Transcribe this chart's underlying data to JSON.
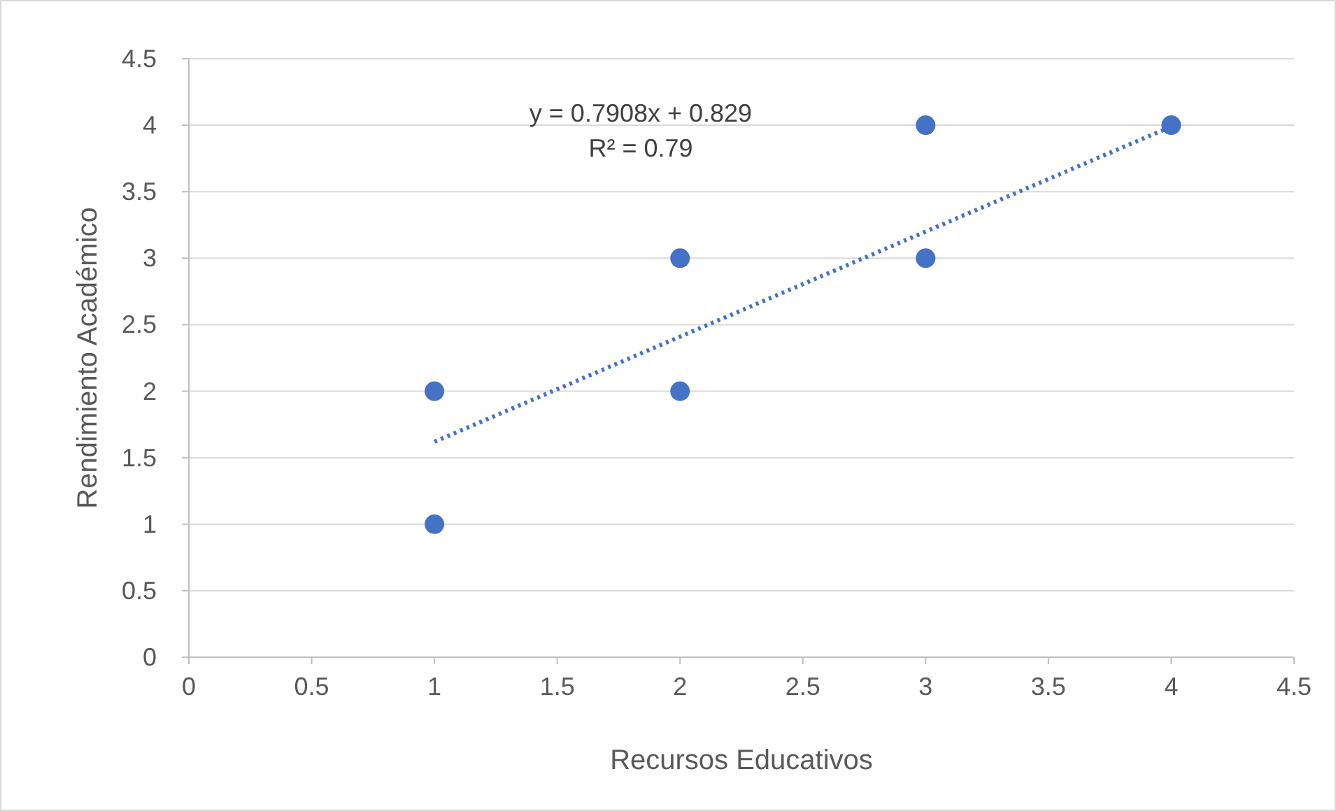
{
  "chart_data": {
    "type": "scatter",
    "xlabel": "Recursos Educativos",
    "ylabel": "Rendimiento Académico",
    "xlim": [
      0,
      4.5
    ],
    "ylim": [
      0,
      4.5
    ],
    "xticks": [
      0,
      0.5,
      1,
      1.5,
      2,
      2.5,
      3,
      3.5,
      4,
      4.5
    ],
    "yticks": [
      0,
      0.5,
      1,
      1.5,
      2,
      2.5,
      3,
      3.5,
      4,
      4.5
    ],
    "grid": "y",
    "marker": "circle",
    "annotations": [
      "y = 0.7908x + 0.829",
      "R² = 0.79"
    ],
    "series": [
      {
        "color": "#4472c4",
        "x": [
          1,
          1,
          2,
          2,
          3,
          3,
          4
        ],
        "values": [
          1,
          2,
          2,
          3,
          3,
          4,
          4
        ]
      },
      {
        "type": "line",
        "color": "#4472c4",
        "line_style": "dotted",
        "marker": "none",
        "x": [
          1,
          4
        ],
        "values": [
          1.62,
          3.99
        ]
      }
    ]
  }
}
